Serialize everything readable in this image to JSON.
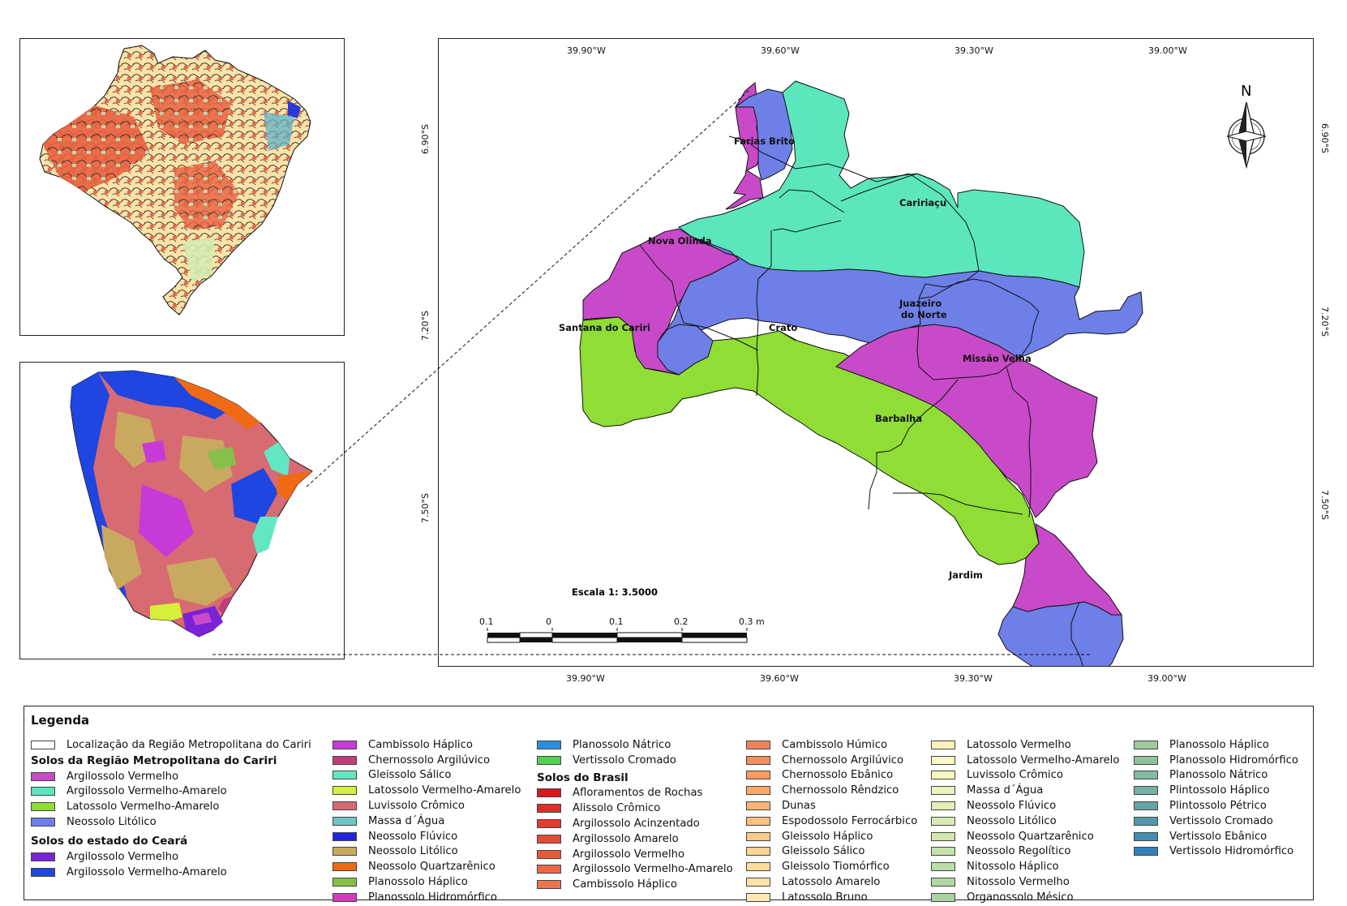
{
  "colors": {
    "argissolo_vermelho": "#c94ac8",
    "argissolo_vermelho_amarelo": "#5ce6bd",
    "latossolo_vermelho_amarelo": "#8fdd35",
    "neossolo_litolico": "#6e7fe8",
    "outline": "#111111"
  },
  "main_map": {
    "top_ticks": [
      "39.90°W",
      "39.60°W",
      "39.30°W",
      "39.00°W"
    ],
    "bottom_ticks": [
      "39.90°W",
      "39.60°W",
      "39.30°W",
      "39.00°W"
    ],
    "left_ticks": [
      "6.90°S",
      "7.20°S",
      "7.50°S"
    ],
    "right_ticks": [
      "6.90°S",
      "7.20°S",
      "7.50°S"
    ],
    "north_label": "N",
    "municipalities": [
      "Farias Brito",
      "Caririaçu",
      "Nova Olinda",
      "Juazeiro",
      "do Norte",
      "Santana do Cariri",
      "Crato",
      "Missão Velha",
      "Barbalha",
      "Jardim"
    ],
    "scale_text": "Escala 1: 3.5000",
    "scale_labels": [
      "0.1",
      "0",
      "0.1",
      "0.2",
      "0.3 m"
    ]
  },
  "legend": {
    "title": "Legenda",
    "location_label": "Localização da Região Metropolitana do Cariri",
    "cariri_header": "Solos da Região Metropolitana do Cariri",
    "cariri_items": [
      {
        "label": "Argilossolo Vermelho",
        "color": "#c94ac8"
      },
      {
        "label": "Argilossolo Vermelho-Amarelo",
        "color": "#5ce6bd"
      },
      {
        "label": "Latossolo Vermelho-Amarelo",
        "color": "#8fdd35"
      },
      {
        "label": "Neossolo Litólico",
        "color": "#6e7fe8"
      }
    ],
    "ceara_header": "Solos do estado do Ceará",
    "ceara_items_a": [
      {
        "label": "Argilossolo Vermelho",
        "color": "#7a23d6"
      },
      {
        "label": "Argilossolo Vermelho-Amarelo",
        "color": "#1f46e0"
      }
    ],
    "ceara_items_b": [
      {
        "label": "Cambissolo Háplico",
        "color": "#c83ad8"
      },
      {
        "label": "Chernossolo Argilúvico",
        "color": "#c23c7c"
      },
      {
        "label": "Gleissolo Sálico",
        "color": "#63e6c4"
      },
      {
        "label": "Latossolo Vermelho-Amarelo",
        "color": "#d6ef3a"
      },
      {
        "label": "Luvissolo Crômico",
        "color": "#d86a72"
      },
      {
        "label": "Massa d´Água",
        "color": "#6cc6c2"
      },
      {
        "label": "Neossolo Flúvico",
        "color": "#2323e6"
      },
      {
        "label": "Neossolo Litólico",
        "color": "#c9a860"
      },
      {
        "label": "Neossolo Quartzarênico",
        "color": "#f06a14"
      },
      {
        "label": "Planossolo Háplico",
        "color": "#86c04a"
      },
      {
        "label": "Planossolo Hidromórfico",
        "color": "#d23ac0"
      }
    ],
    "ceara_items_c": [
      {
        "label": "Planossolo Nátrico",
        "color": "#2a8ee0"
      },
      {
        "label": "Vertissolo Cromado",
        "color": "#4fd24f"
      }
    ],
    "brasil_header": "Solos do Brasil",
    "brasil_items_a": [
      {
        "label": "Afloramentos de Rochas",
        "color": "#d7191c"
      },
      {
        "label": "Alissolo Crômico",
        "color": "#dc2f2a"
      },
      {
        "label": "Argilossolo Acinzentado",
        "color": "#e03c30"
      },
      {
        "label": "Argilossolo Amarelo",
        "color": "#e34a36"
      },
      {
        "label": "Argilossolo Vermelho",
        "color": "#e7583c"
      },
      {
        "label": "Argilossolo Vermelho-Amarelo",
        "color": "#eb6645"
      },
      {
        "label": "Cambissolo Háplico",
        "color": "#ee7450"
      }
    ],
    "brasil_items_b": [
      {
        "label": "Cambissolo Húmico",
        "color": "#f08258"
      },
      {
        "label": "Chernossolo Argilúvico",
        "color": "#f38f5e"
      },
      {
        "label": "Chernossolo Ebânico",
        "color": "#f59c64"
      },
      {
        "label": "Chernossolo Rêndzico",
        "color": "#f7a96c"
      },
      {
        "label": "Dunas",
        "color": "#f9b474"
      },
      {
        "label": "Espodossolo Ferrocárbico",
        "color": "#fbc07e"
      },
      {
        "label": "Gleissolo Háplico",
        "color": "#fcca88"
      },
      {
        "label": "Gleissolo Sálico",
        "color": "#fdd494"
      },
      {
        "label": "Gleissolo Tiomórfico",
        "color": "#fedc9e"
      },
      {
        "label": "Latossolo Amarelo",
        "color": "#fee3a8"
      },
      {
        "label": "Latossolo Bruno",
        "color": "#ffe9b2"
      }
    ],
    "brasil_items_c": [
      {
        "label": "Latossolo Vermelho",
        "color": "#fff1bc"
      },
      {
        "label": "Latossolo Vermelho-Amarelo",
        "color": "#fbf6c2"
      },
      {
        "label": "Luvissolo Crômico",
        "color": "#f5f6c0"
      },
      {
        "label": "Massa d´Água",
        "color": "#ecf3bc"
      },
      {
        "label": "Neossolo Flúvico",
        "color": "#e3efb8"
      },
      {
        "label": "Neossolo Litólico",
        "color": "#daebb4"
      },
      {
        "label": "Neossolo Quartzarênico",
        "color": "#d0e7b0"
      },
      {
        "label": "Neossolo Regolítico",
        "color": "#c6e2ac"
      },
      {
        "label": "Nitossolo Háplico",
        "color": "#bcdda8"
      },
      {
        "label": "Nitossolo Vermelho",
        "color": "#b2d8a4"
      },
      {
        "label": "Organossolo Mésico",
        "color": "#a8d3a0"
      }
    ],
    "brasil_items_d": [
      {
        "label": "Planossolo Háplico",
        "color": "#9ccb9c"
      },
      {
        "label": "Planossolo Hidromórfico",
        "color": "#8fc39c"
      },
      {
        "label": "Planossolo Nátrico",
        "color": "#82bb9e"
      },
      {
        "label": "Plintossolo Háplico",
        "color": "#72b0a4"
      },
      {
        "label": "Plintossolo Pétrico",
        "color": "#62a4a8"
      },
      {
        "label": "Vertissolo Cromado",
        "color": "#5298ac"
      },
      {
        "label": "Vertissolo Ebânico",
        "color": "#428cb2"
      },
      {
        "label": "Vertissolo Hidromórfico",
        "color": "#3280b8"
      }
    ]
  }
}
